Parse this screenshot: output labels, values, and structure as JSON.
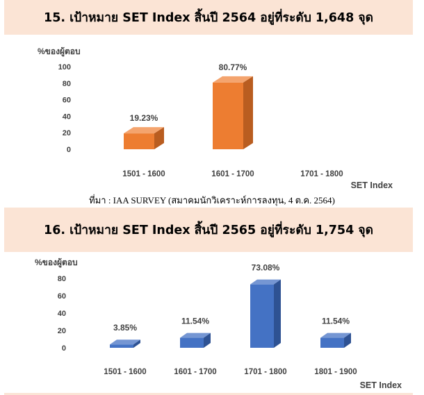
{
  "colors": {
    "banner_bg": "#fbe4d5",
    "bar1_front": "#ed7d31",
    "bar1_top": "#f4a46e",
    "bar1_side": "#b95d20",
    "bar2_front": "#4472c4",
    "bar2_top": "#7596d3",
    "bar2_side": "#2e5293",
    "text": "#404040"
  },
  "chart_data": [
    {
      "type": "bar",
      "style": "3d-columns",
      "title": "15. เป้าหมาย SET Index สิ้นปี 2564 อยู่ที่ระดับ 1,648 จุด",
      "ylabel": "%ของผู้ตอบ",
      "xlabel": "SET Index",
      "categories": [
        "1501 - 1600",
        "1601 - 1700",
        "1701 - 1800"
      ],
      "values": [
        19.23,
        80.77,
        0
      ],
      "data_labels": [
        "19.23%",
        "80.77%",
        ""
      ],
      "yticks": [
        "0",
        "20",
        "40",
        "60",
        "80",
        "100"
      ],
      "ylim": [
        0,
        100
      ],
      "grid": false,
      "legend": "none"
    },
    {
      "type": "bar",
      "style": "3d-columns",
      "title": "16. เป้าหมาย SET Index สิ้นปี 2565 อยู่ที่ระดับ 1,754 จุด",
      "ylabel": "%ของผู้ตอบ",
      "xlabel": "SET Index",
      "categories": [
        "1501 - 1600",
        "1601 - 1700",
        "1701 - 1800",
        "1801 - 1900"
      ],
      "values": [
        3.85,
        11.54,
        73.08,
        11.54
      ],
      "data_labels": [
        "3.85%",
        "11.54%",
        "73.08%",
        "11.54%"
      ],
      "yticks": [
        "0",
        "20",
        "40",
        "60",
        "80"
      ],
      "ylim": [
        0,
        80
      ],
      "grid": false,
      "legend": "none"
    }
  ],
  "source_note": "ที่มา : IAA SURVEY (สมาคมนักวิเคราะห์การลงทุน, 4 ต.ค. 2564)"
}
